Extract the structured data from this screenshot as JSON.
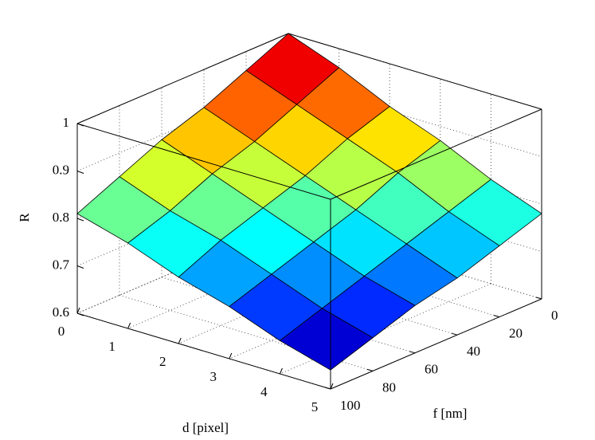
{
  "chart_data": {
    "type": "surface",
    "xlabel": "d [pixel]",
    "ylabel": "f [nm]",
    "zlabel": "R",
    "x": [
      0,
      1,
      2,
      3,
      4,
      5
    ],
    "y": [
      0,
      20,
      40,
      60,
      80,
      100
    ],
    "z": [
      [
        1,
        0.96,
        0.92,
        0.89,
        0.85,
        0.81
      ],
      [
        0.96,
        0.92,
        0.88,
        0.85,
        0.81,
        0.78
      ],
      [
        0.91,
        0.88,
        0.84,
        0.81,
        0.78,
        0.74
      ],
      [
        0.87,
        0.84,
        0.8,
        0.77,
        0.74,
        0.71
      ],
      [
        0.82,
        0.79,
        0.76,
        0.73,
        0.7,
        0.67
      ],
      [
        0.78,
        0.75,
        0.72,
        0.7,
        0.67,
        0.64
      ]
    ],
    "xlim": [
      0,
      5
    ],
    "ylim": [
      0,
      100
    ],
    "zlim": [
      0.6,
      1
    ],
    "xticks": [
      0,
      1,
      2,
      3,
      4,
      5
    ],
    "yticks": [
      0,
      20,
      40,
      60,
      80,
      100
    ],
    "zticks": [
      0.6,
      0.7,
      0.8,
      0.9,
      1
    ],
    "colormap": "jet",
    "grid": true
  }
}
